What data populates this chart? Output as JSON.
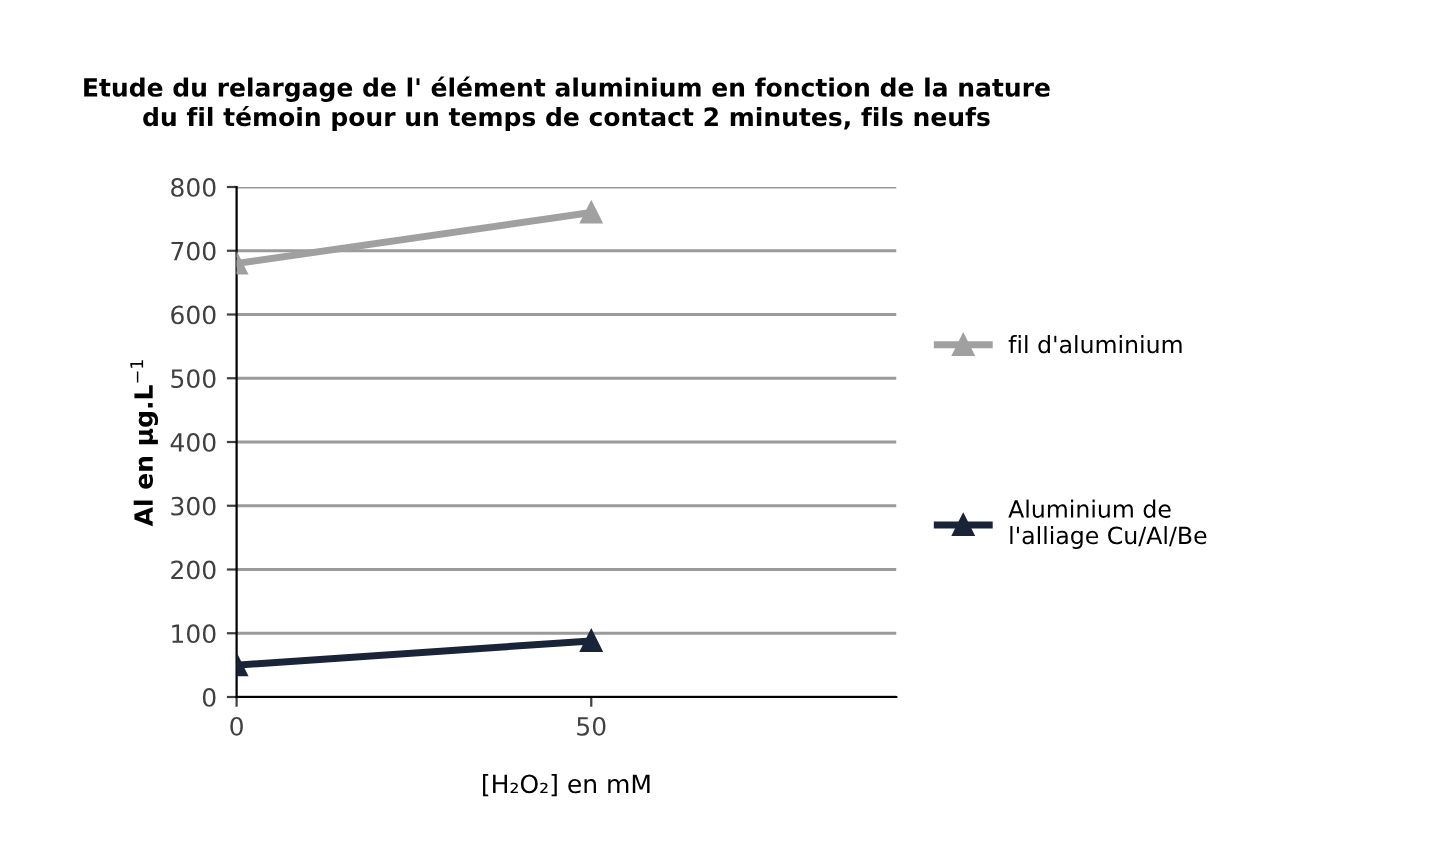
{
  "chart_data": {
    "type": "line",
    "title": "Etude du relargage de l' élément aluminium en fonction de la nature\ndu fil témoin pour un temps de contact 2 minutes, fils neufs",
    "xlabel": "[H₂O₂] en mM",
    "ylabel": "Al en µg.L$^{−1}$",
    "x": [
      0,
      50
    ],
    "series": [
      {
        "name": "fil d'aluminium",
        "color": "#a0a0a0",
        "values": [
          680,
          760
        ]
      },
      {
        "name": "Aluminium de\nl'alliage Cu/Al/Be",
        "color": "#1a2438",
        "values": [
          50,
          88
        ]
      }
    ],
    "xlim": [
      0,
      93
    ],
    "xticks": [
      0,
      50
    ],
    "ylim": [
      0,
      800
    ],
    "yticks": [
      0,
      100,
      200,
      300,
      400,
      500,
      600,
      700,
      800
    ],
    "grid": "y",
    "legend": "right",
    "marker": "triangle",
    "line_style": "solid"
  }
}
